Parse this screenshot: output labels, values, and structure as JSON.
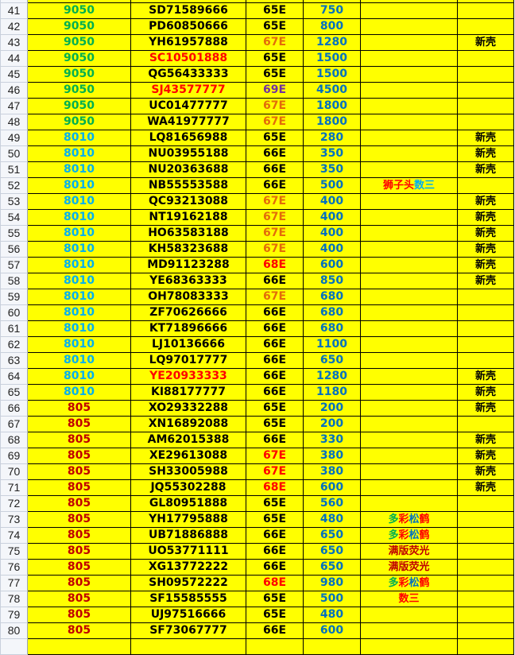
{
  "colors": {
    "green": "#00b050",
    "lightblue": "#00b0f0",
    "darkred": "#c00000",
    "red": "#ff0000",
    "orange": "#e36c09",
    "purple": "#7030a0",
    "blue": "#0070c0",
    "black": "#000000",
    "cell_fill": "#ffff00"
  },
  "rows": [
    {
      "n": "41",
      "a": "9050",
      "ac": "green",
      "b": "SD71589666",
      "bc": "black",
      "c": "65E",
      "cc": "black",
      "d": "750",
      "e": [],
      "f": ""
    },
    {
      "n": "42",
      "a": "9050",
      "ac": "green",
      "b": "PD60850666",
      "bc": "black",
      "c": "65E",
      "cc": "black",
      "d": "800",
      "e": [],
      "f": ""
    },
    {
      "n": "43",
      "a": "9050",
      "ac": "green",
      "b": "YH61957888",
      "bc": "black",
      "c": "67E",
      "cc": "orange",
      "d": "1280",
      "e": [],
      "f": "新壳"
    },
    {
      "n": "44",
      "a": "9050",
      "ac": "green",
      "b": "SC10501888",
      "bc": "red",
      "c": "65E",
      "cc": "black",
      "d": "1500",
      "e": [],
      "f": ""
    },
    {
      "n": "45",
      "a": "9050",
      "ac": "green",
      "b": "QG56433333",
      "bc": "black",
      "c": "65E",
      "cc": "black",
      "d": "1500",
      "e": [],
      "f": ""
    },
    {
      "n": "46",
      "a": "9050",
      "ac": "green",
      "b": "SJ43577777",
      "bc": "red",
      "c": "69E",
      "cc": "purple",
      "d": "4500",
      "e": [],
      "f": ""
    },
    {
      "n": "47",
      "a": "9050",
      "ac": "green",
      "b": "UC01477777",
      "bc": "black",
      "c": "67E",
      "cc": "orange",
      "d": "1800",
      "e": [],
      "f": ""
    },
    {
      "n": "48",
      "a": "9050",
      "ac": "green",
      "b": "WA41977777",
      "bc": "black",
      "c": "67E",
      "cc": "orange",
      "d": "1800",
      "e": [],
      "f": ""
    },
    {
      "n": "49",
      "a": "8010",
      "ac": "lightblue",
      "b": "LQ81656988",
      "bc": "black",
      "c": "65E",
      "cc": "black",
      "d": "280",
      "e": [],
      "f": "新壳"
    },
    {
      "n": "50",
      "a": "8010",
      "ac": "lightblue",
      "b": "NU03955188",
      "bc": "black",
      "c": "66E",
      "cc": "black",
      "d": "350",
      "e": [],
      "f": "新壳"
    },
    {
      "n": "51",
      "a": "8010",
      "ac": "lightblue",
      "b": "NU20363688",
      "bc": "black",
      "c": "66E",
      "cc": "black",
      "d": "350",
      "e": [],
      "f": "新壳"
    },
    {
      "n": "52",
      "a": "8010",
      "ac": "lightblue",
      "b": "NB55553588",
      "bc": "black",
      "c": "66E",
      "cc": "black",
      "d": "500",
      "e": [
        {
          "t": "狮子头",
          "c": "red"
        },
        {
          "t": "数三",
          "c": "lightblue"
        }
      ],
      "f": ""
    },
    {
      "n": "53",
      "a": "8010",
      "ac": "lightblue",
      "b": "QC93213088",
      "bc": "black",
      "c": "67E",
      "cc": "orange",
      "d": "400",
      "e": [],
      "f": "新壳"
    },
    {
      "n": "54",
      "a": "8010",
      "ac": "lightblue",
      "b": "NT19162188",
      "bc": "black",
      "c": "67E",
      "cc": "orange",
      "d": "400",
      "e": [],
      "f": "新壳"
    },
    {
      "n": "55",
      "a": "8010",
      "ac": "lightblue",
      "b": "HO63583188",
      "bc": "black",
      "c": "67E",
      "cc": "orange",
      "d": "400",
      "e": [],
      "f": "新壳"
    },
    {
      "n": "56",
      "a": "8010",
      "ac": "lightblue",
      "b": "KH58323688",
      "bc": "black",
      "c": "67E",
      "cc": "orange",
      "d": "400",
      "e": [],
      "f": "新壳"
    },
    {
      "n": "57",
      "a": "8010",
      "ac": "lightblue",
      "b": "MD91123288",
      "bc": "black",
      "c": "68E",
      "cc": "red",
      "d": "600",
      "e": [],
      "f": "新壳"
    },
    {
      "n": "58",
      "a": "8010",
      "ac": "lightblue",
      "b": "YE68363333",
      "bc": "black",
      "c": "66E",
      "cc": "black",
      "d": "850",
      "e": [],
      "f": "新壳"
    },
    {
      "n": "59",
      "a": "8010",
      "ac": "lightblue",
      "b": "OH78083333",
      "bc": "black",
      "c": "67E",
      "cc": "orange",
      "d": "680",
      "e": [],
      "f": ""
    },
    {
      "n": "60",
      "a": "8010",
      "ac": "lightblue",
      "b": "ZF70626666",
      "bc": "black",
      "c": "66E",
      "cc": "black",
      "d": "680",
      "e": [],
      "f": ""
    },
    {
      "n": "61",
      "a": "8010",
      "ac": "lightblue",
      "b": "KT71896666",
      "bc": "black",
      "c": "66E",
      "cc": "black",
      "d": "680",
      "e": [],
      "f": ""
    },
    {
      "n": "62",
      "a": "8010",
      "ac": "lightblue",
      "b": "LJ10136666",
      "bc": "black",
      "c": "66E",
      "cc": "black",
      "d": "1100",
      "e": [],
      "f": ""
    },
    {
      "n": "63",
      "a": "8010",
      "ac": "lightblue",
      "b": "LQ97017777",
      "bc": "black",
      "c": "66E",
      "cc": "black",
      "d": "650",
      "e": [],
      "f": ""
    },
    {
      "n": "64",
      "a": "8010",
      "ac": "lightblue",
      "b": "YE20933333",
      "bc": "red",
      "c": "66E",
      "cc": "black",
      "d": "1280",
      "e": [],
      "f": "新壳"
    },
    {
      "n": "65",
      "a": "8010",
      "ac": "lightblue",
      "b": "KI88177777",
      "bc": "black",
      "c": "66E",
      "cc": "black",
      "d": "1180",
      "e": [],
      "f": "新壳"
    },
    {
      "n": "66",
      "a": "805",
      "ac": "darkred",
      "b": "XO29332288",
      "bc": "black",
      "c": "65E",
      "cc": "black",
      "d": "200",
      "e": [],
      "f": "新壳"
    },
    {
      "n": "67",
      "a": "805",
      "ac": "darkred",
      "b": "XN16892088",
      "bc": "black",
      "c": "65E",
      "cc": "black",
      "d": "200",
      "e": [],
      "f": ""
    },
    {
      "n": "68",
      "a": "805",
      "ac": "darkred",
      "b": "AM62015388",
      "bc": "black",
      "c": "66E",
      "cc": "black",
      "d": "330",
      "e": [],
      "f": "新壳"
    },
    {
      "n": "69",
      "a": "805",
      "ac": "darkred",
      "b": "XE29613088",
      "bc": "black",
      "c": "67E",
      "cc": "red",
      "d": "380",
      "e": [],
      "f": "新壳"
    },
    {
      "n": "70",
      "a": "805",
      "ac": "darkred",
      "b": "SH33005988",
      "bc": "black",
      "c": "67E",
      "cc": "red",
      "d": "380",
      "e": [],
      "f": "新壳"
    },
    {
      "n": "71",
      "a": "805",
      "ac": "darkred",
      "b": "JQ55302288",
      "bc": "black",
      "c": "68E",
      "cc": "red",
      "d": "600",
      "e": [],
      "f": "新壳"
    },
    {
      "n": "72",
      "a": "805",
      "ac": "darkred",
      "b": "GL80951888",
      "bc": "black",
      "c": "65E",
      "cc": "black",
      "d": "560",
      "e": [],
      "f": ""
    },
    {
      "n": "73",
      "a": "805",
      "ac": "darkred",
      "b": "YH17795888",
      "bc": "black",
      "c": "65E",
      "cc": "black",
      "d": "480",
      "e": [
        {
          "t": "多",
          "c": "green"
        },
        {
          "t": "彩",
          "c": "red"
        },
        {
          "t": "松",
          "c": "blue"
        },
        {
          "t": "鹤",
          "c": "red"
        }
      ],
      "f": ""
    },
    {
      "n": "74",
      "a": "805",
      "ac": "darkred",
      "b": "UB71886888",
      "bc": "black",
      "c": "66E",
      "cc": "black",
      "d": "650",
      "e": [
        {
          "t": "多",
          "c": "green"
        },
        {
          "t": "彩",
          "c": "red"
        },
        {
          "t": "松",
          "c": "blue"
        },
        {
          "t": "鹤",
          "c": "red"
        }
      ],
      "f": ""
    },
    {
      "n": "75",
      "a": "805",
      "ac": "darkred",
      "b": "UO53771111",
      "bc": "black",
      "c": "66E",
      "cc": "black",
      "d": "650",
      "e": [
        {
          "t": "满版荧光",
          "c": "darkred"
        }
      ],
      "f": ""
    },
    {
      "n": "76",
      "a": "805",
      "ac": "darkred",
      "b": "XG13772222",
      "bc": "black",
      "c": "66E",
      "cc": "black",
      "d": "650",
      "e": [
        {
          "t": "满版荧光",
          "c": "darkred"
        }
      ],
      "f": ""
    },
    {
      "n": "77",
      "a": "805",
      "ac": "darkred",
      "b": "SH09572222",
      "bc": "black",
      "c": "68E",
      "cc": "red",
      "d": "980",
      "e": [
        {
          "t": "多",
          "c": "green"
        },
        {
          "t": "彩",
          "c": "red"
        },
        {
          "t": "松",
          "c": "blue"
        },
        {
          "t": "鹤",
          "c": "red"
        }
      ],
      "f": ""
    },
    {
      "n": "78",
      "a": "805",
      "ac": "darkred",
      "b": "SF15585555",
      "bc": "black",
      "c": "65E",
      "cc": "black",
      "d": "500",
      "e": [
        {
          "t": "数三",
          "c": "red"
        }
      ],
      "f": ""
    },
    {
      "n": "79",
      "a": "805",
      "ac": "darkred",
      "b": "UJ97516666",
      "bc": "black",
      "c": "65E",
      "cc": "black",
      "d": "480",
      "e": [],
      "f": ""
    },
    {
      "n": "80",
      "a": "805",
      "ac": "darkred",
      "b": "SF73067777",
      "bc": "black",
      "c": "66E",
      "cc": "black",
      "d": "600",
      "e": [],
      "f": ""
    }
  ]
}
